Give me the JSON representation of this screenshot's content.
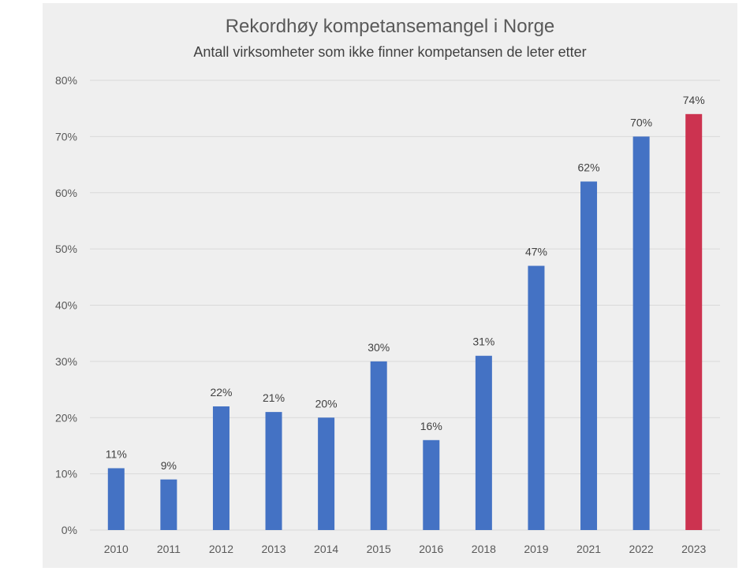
{
  "chart_data": {
    "type": "bar",
    "title": "Rekordhøy kompetansemangel i Norge",
    "subtitle": "Antall virksomheter som ikke finner kompetansen de leter etter",
    "categories": [
      "2010",
      "2011",
      "2012",
      "2013",
      "2014",
      "2015",
      "2016",
      "2018",
      "2019",
      "2021",
      "2022",
      "2023"
    ],
    "values": [
      11,
      9,
      22,
      21,
      20,
      30,
      16,
      31,
      47,
      62,
      70,
      74
    ],
    "data_labels": [
      "11%",
      "9%",
      "22%",
      "21%",
      "20%",
      "30%",
      "16%",
      "31%",
      "47%",
      "62%",
      "70%",
      "74%"
    ],
    "ylim": [
      0,
      80
    ],
    "yticks": [
      0,
      10,
      20,
      30,
      40,
      50,
      60,
      70,
      80
    ],
    "ytick_labels": [
      "0%",
      "10%",
      "20%",
      "30%",
      "40%",
      "50%",
      "60%",
      "70%",
      "80%"
    ],
    "xlabel": "",
    "ylabel": "",
    "grid": true,
    "legend": "none",
    "colors": {
      "bar": "#4472c4",
      "highlight_bar": "#cc3350",
      "highlight_index": 11,
      "gridline": "#d9d9d9",
      "axis_text": "#595959",
      "label_text": "#404040",
      "background": "#efefef"
    }
  }
}
